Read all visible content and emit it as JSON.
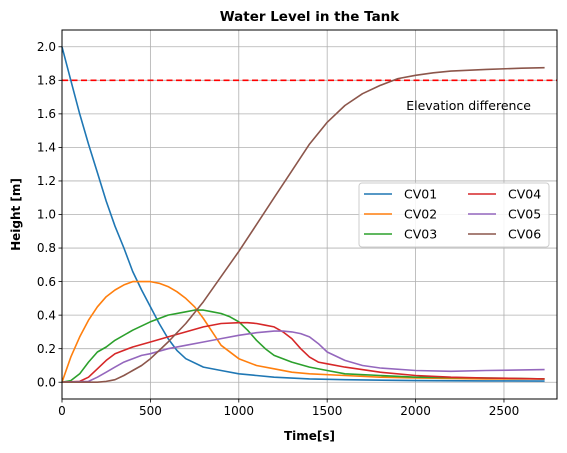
{
  "chart_data": {
    "type": "line",
    "title": "Water Level in the Tank",
    "xlabel": "Time[s]",
    "ylabel": "Height [m]",
    "xlim": [
      0,
      2800
    ],
    "ylim": [
      -0.1,
      2.1
    ],
    "xticks": [
      0,
      500,
      1000,
      1500,
      2000,
      2500
    ],
    "yticks": [
      0.0,
      0.2,
      0.4,
      0.6,
      0.8,
      1.0,
      1.2,
      1.4,
      1.6,
      1.8,
      2.0
    ],
    "xtick_labels": [
      "0",
      "500",
      "1000",
      "1500",
      "2000",
      "2500"
    ],
    "ytick_labels": [
      "0.0",
      "0.2",
      "0.4",
      "0.6",
      "0.8",
      "1.0",
      "1.2",
      "1.4",
      "1.6",
      "1.8",
      "2.0"
    ],
    "grid": true,
    "legend_position": "center-right",
    "legend_columns": 2,
    "reference_line": {
      "y": 1.8,
      "color": "#ff0000",
      "style": "dashed"
    },
    "annotations": [
      {
        "text": "Elevation difference",
        "x": 2300,
        "y": 1.65,
        "color": "#ff0000"
      }
    ],
    "series": [
      {
        "name": "CV01",
        "color": "#1f77b4",
        "x": [
          0,
          50,
          100,
          150,
          200,
          250,
          300,
          350,
          400,
          450,
          500,
          550,
          600,
          650,
          700,
          800,
          900,
          1000,
          1100,
          1200,
          1400,
          1600,
          2000,
          2400,
          2730
        ],
        "y": [
          2.0,
          1.8,
          1.6,
          1.42,
          1.25,
          1.08,
          0.93,
          0.8,
          0.66,
          0.55,
          0.45,
          0.35,
          0.26,
          0.19,
          0.14,
          0.09,
          0.07,
          0.05,
          0.04,
          0.03,
          0.02,
          0.015,
          0.01,
          0.008,
          0.007
        ]
      },
      {
        "name": "CV02",
        "color": "#ff7f0e",
        "x": [
          0,
          50,
          100,
          150,
          200,
          250,
          300,
          350,
          400,
          450,
          500,
          550,
          600,
          650,
          700,
          750,
          800,
          850,
          900,
          1000,
          1100,
          1200,
          1300,
          1400,
          1600,
          1800,
          2000,
          2400,
          2730
        ],
        "y": [
          0.0,
          0.15,
          0.27,
          0.37,
          0.45,
          0.51,
          0.55,
          0.58,
          0.6,
          0.6,
          0.6,
          0.59,
          0.57,
          0.54,
          0.5,
          0.45,
          0.38,
          0.3,
          0.22,
          0.14,
          0.1,
          0.08,
          0.06,
          0.05,
          0.04,
          0.03,
          0.025,
          0.02,
          0.02
        ]
      },
      {
        "name": "CV03",
        "color": "#2ca02c",
        "x": [
          0,
          50,
          100,
          150,
          200,
          250,
          300,
          400,
          500,
          600,
          700,
          750,
          800,
          850,
          900,
          950,
          1000,
          1050,
          1100,
          1150,
          1200,
          1300,
          1400,
          1500,
          1600,
          1800,
          2000,
          2400,
          2730
        ],
        "y": [
          0.0,
          0.01,
          0.05,
          0.12,
          0.18,
          0.21,
          0.25,
          0.31,
          0.36,
          0.4,
          0.42,
          0.43,
          0.43,
          0.42,
          0.41,
          0.39,
          0.36,
          0.31,
          0.25,
          0.2,
          0.16,
          0.12,
          0.09,
          0.07,
          0.05,
          0.04,
          0.03,
          0.025,
          0.02
        ]
      },
      {
        "name": "CV04",
        "color": "#d62728",
        "x": [
          0,
          100,
          150,
          200,
          250,
          300,
          400,
          500,
          600,
          700,
          800,
          900,
          1000,
          1050,
          1100,
          1150,
          1200,
          1250,
          1300,
          1350,
          1400,
          1450,
          1500,
          1600,
          1800,
          2000,
          2200,
          2400,
          2730
        ],
        "y": [
          0.0,
          0.005,
          0.03,
          0.08,
          0.13,
          0.17,
          0.21,
          0.24,
          0.27,
          0.3,
          0.33,
          0.35,
          0.355,
          0.355,
          0.35,
          0.34,
          0.33,
          0.3,
          0.26,
          0.2,
          0.15,
          0.12,
          0.11,
          0.09,
          0.06,
          0.04,
          0.03,
          0.025,
          0.02
        ]
      },
      {
        "name": "CV05",
        "color": "#9467bd",
        "x": [
          0,
          150,
          200,
          250,
          300,
          350,
          400,
          450,
          500,
          600,
          700,
          800,
          900,
          1000,
          1100,
          1200,
          1250,
          1300,
          1350,
          1400,
          1450,
          1500,
          1600,
          1700,
          1800,
          2000,
          2200,
          2400,
          2730
        ],
        "y": [
          0.0,
          0.005,
          0.03,
          0.06,
          0.09,
          0.12,
          0.14,
          0.16,
          0.17,
          0.2,
          0.22,
          0.24,
          0.26,
          0.28,
          0.295,
          0.305,
          0.305,
          0.3,
          0.29,
          0.27,
          0.23,
          0.18,
          0.13,
          0.1,
          0.085,
          0.07,
          0.065,
          0.07,
          0.075
        ]
      },
      {
        "name": "CV06",
        "color": "#8c564b",
        "x": [
          0,
          200,
          250,
          300,
          350,
          400,
          450,
          500,
          550,
          600,
          700,
          800,
          900,
          1000,
          1100,
          1200,
          1300,
          1400,
          1500,
          1600,
          1700,
          1800,
          1900,
          2000,
          2100,
          2200,
          2400,
          2600,
          2730
        ],
        "y": [
          0.0,
          0.0,
          0.005,
          0.015,
          0.04,
          0.07,
          0.1,
          0.14,
          0.19,
          0.24,
          0.35,
          0.48,
          0.63,
          0.78,
          0.94,
          1.1,
          1.26,
          1.42,
          1.55,
          1.65,
          1.72,
          1.77,
          1.81,
          1.83,
          1.845,
          1.855,
          1.865,
          1.872,
          1.875
        ]
      }
    ]
  }
}
